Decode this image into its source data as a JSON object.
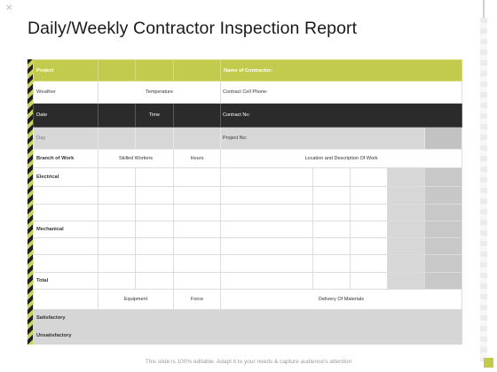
{
  "title": "Daily/Weekly Contractor Inspection Report",
  "table": {
    "project_label": "Project",
    "contractor_name_label": "Name of Contractor:",
    "weather_label": "Weather",
    "temperature_label": "Temperature",
    "cell_phone_label": "Contract Cell Phone:",
    "date_label": "Date",
    "time_label": "Time",
    "contract_no_label": "Contract No:",
    "day_label": "Day",
    "project_no_label": "Project No:",
    "branch_label": "Branch of Work",
    "skilled_label": "Skilled Workers",
    "hours_label": "Hours",
    "location_label": "Location and Description Of Work",
    "electrical_label": "Electrical",
    "mechanical_label": "Mechanical",
    "total_label": "Total",
    "equipment_label": "Equipment",
    "force_label": "Force",
    "delivery_label": "Delivery Of Materials",
    "satisfactory_label": "Satisfactory",
    "unsatisfactory_label": "Unsatisfactory"
  },
  "footer": "This slide is 100% editable. Adapt it to your needs & capture audience's attention",
  "colors": {
    "accent": "#c2cb4d",
    "dark": "#2b2b2b",
    "grey": "#d7d7d7"
  }
}
